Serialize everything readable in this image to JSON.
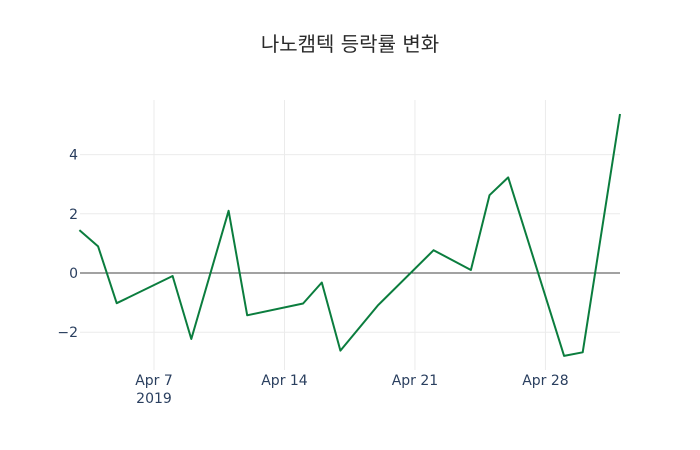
{
  "chart_data": {
    "type": "line",
    "title": "나노캠텍 등락률 변화",
    "xlabel": "",
    "ylabel": "",
    "x_tick_labels": [
      "Apr 7\n2019",
      "Apr 14",
      "Apr 21",
      "Apr 28"
    ],
    "y_tick_labels": [
      "−2",
      "0",
      "2",
      "4"
    ],
    "ylim": [
      -3.3,
      5.75
    ],
    "xlim": [
      "2019-04-03",
      "2019-05-02"
    ],
    "grid": true,
    "line_color": "#0b7d3e",
    "series": [
      {
        "name": "등락률",
        "x": [
          "2019-04-03",
          "2019-04-04",
          "2019-04-05",
          "2019-04-08",
          "2019-04-09",
          "2019-04-11",
          "2019-04-12",
          "2019-04-15",
          "2019-04-16",
          "2019-04-17",
          "2019-04-19",
          "2019-04-22",
          "2019-04-24",
          "2019-04-25",
          "2019-04-26",
          "2019-04-29",
          "2019-04-30",
          "2019-05-02"
        ],
        "values": [
          1.45,
          0.9,
          -1.02,
          -0.1,
          -2.23,
          2.1,
          -1.43,
          -1.03,
          -0.32,
          -2.62,
          -1.1,
          0.77,
          0.1,
          2.63,
          3.23,
          -2.8,
          -2.68,
          5.37
        ]
      }
    ]
  }
}
